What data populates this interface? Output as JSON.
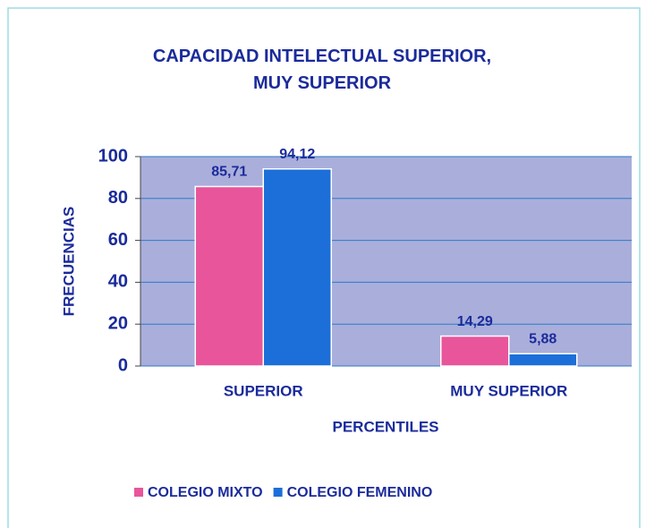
{
  "chart_data": {
    "type": "bar",
    "title": "CAPACIDAD INTELECTUAL SUPERIOR, MUY SUPERIOR",
    "x_label": "PERCENTILES",
    "y_label": "FRECUENCIAS",
    "categories": [
      "SUPERIOR",
      "MUY SUPERIOR"
    ],
    "series": [
      {
        "name": "COLEGIO MIXTO",
        "color": "#e8559b",
        "values": [
          85.71,
          14.29
        ],
        "value_labels": [
          "85,71",
          "14,29"
        ]
      },
      {
        "name": "COLEGIO FEMENINO",
        "color": "#1c6fd8",
        "values": [
          94.12,
          5.88
        ],
        "value_labels": [
          "94,12",
          "5,88"
        ]
      }
    ],
    "ylim": [
      0,
      100
    ],
    "yticks": [
      0,
      20,
      40,
      60,
      80,
      100
    ],
    "grid": true,
    "legend": "bottom"
  }
}
